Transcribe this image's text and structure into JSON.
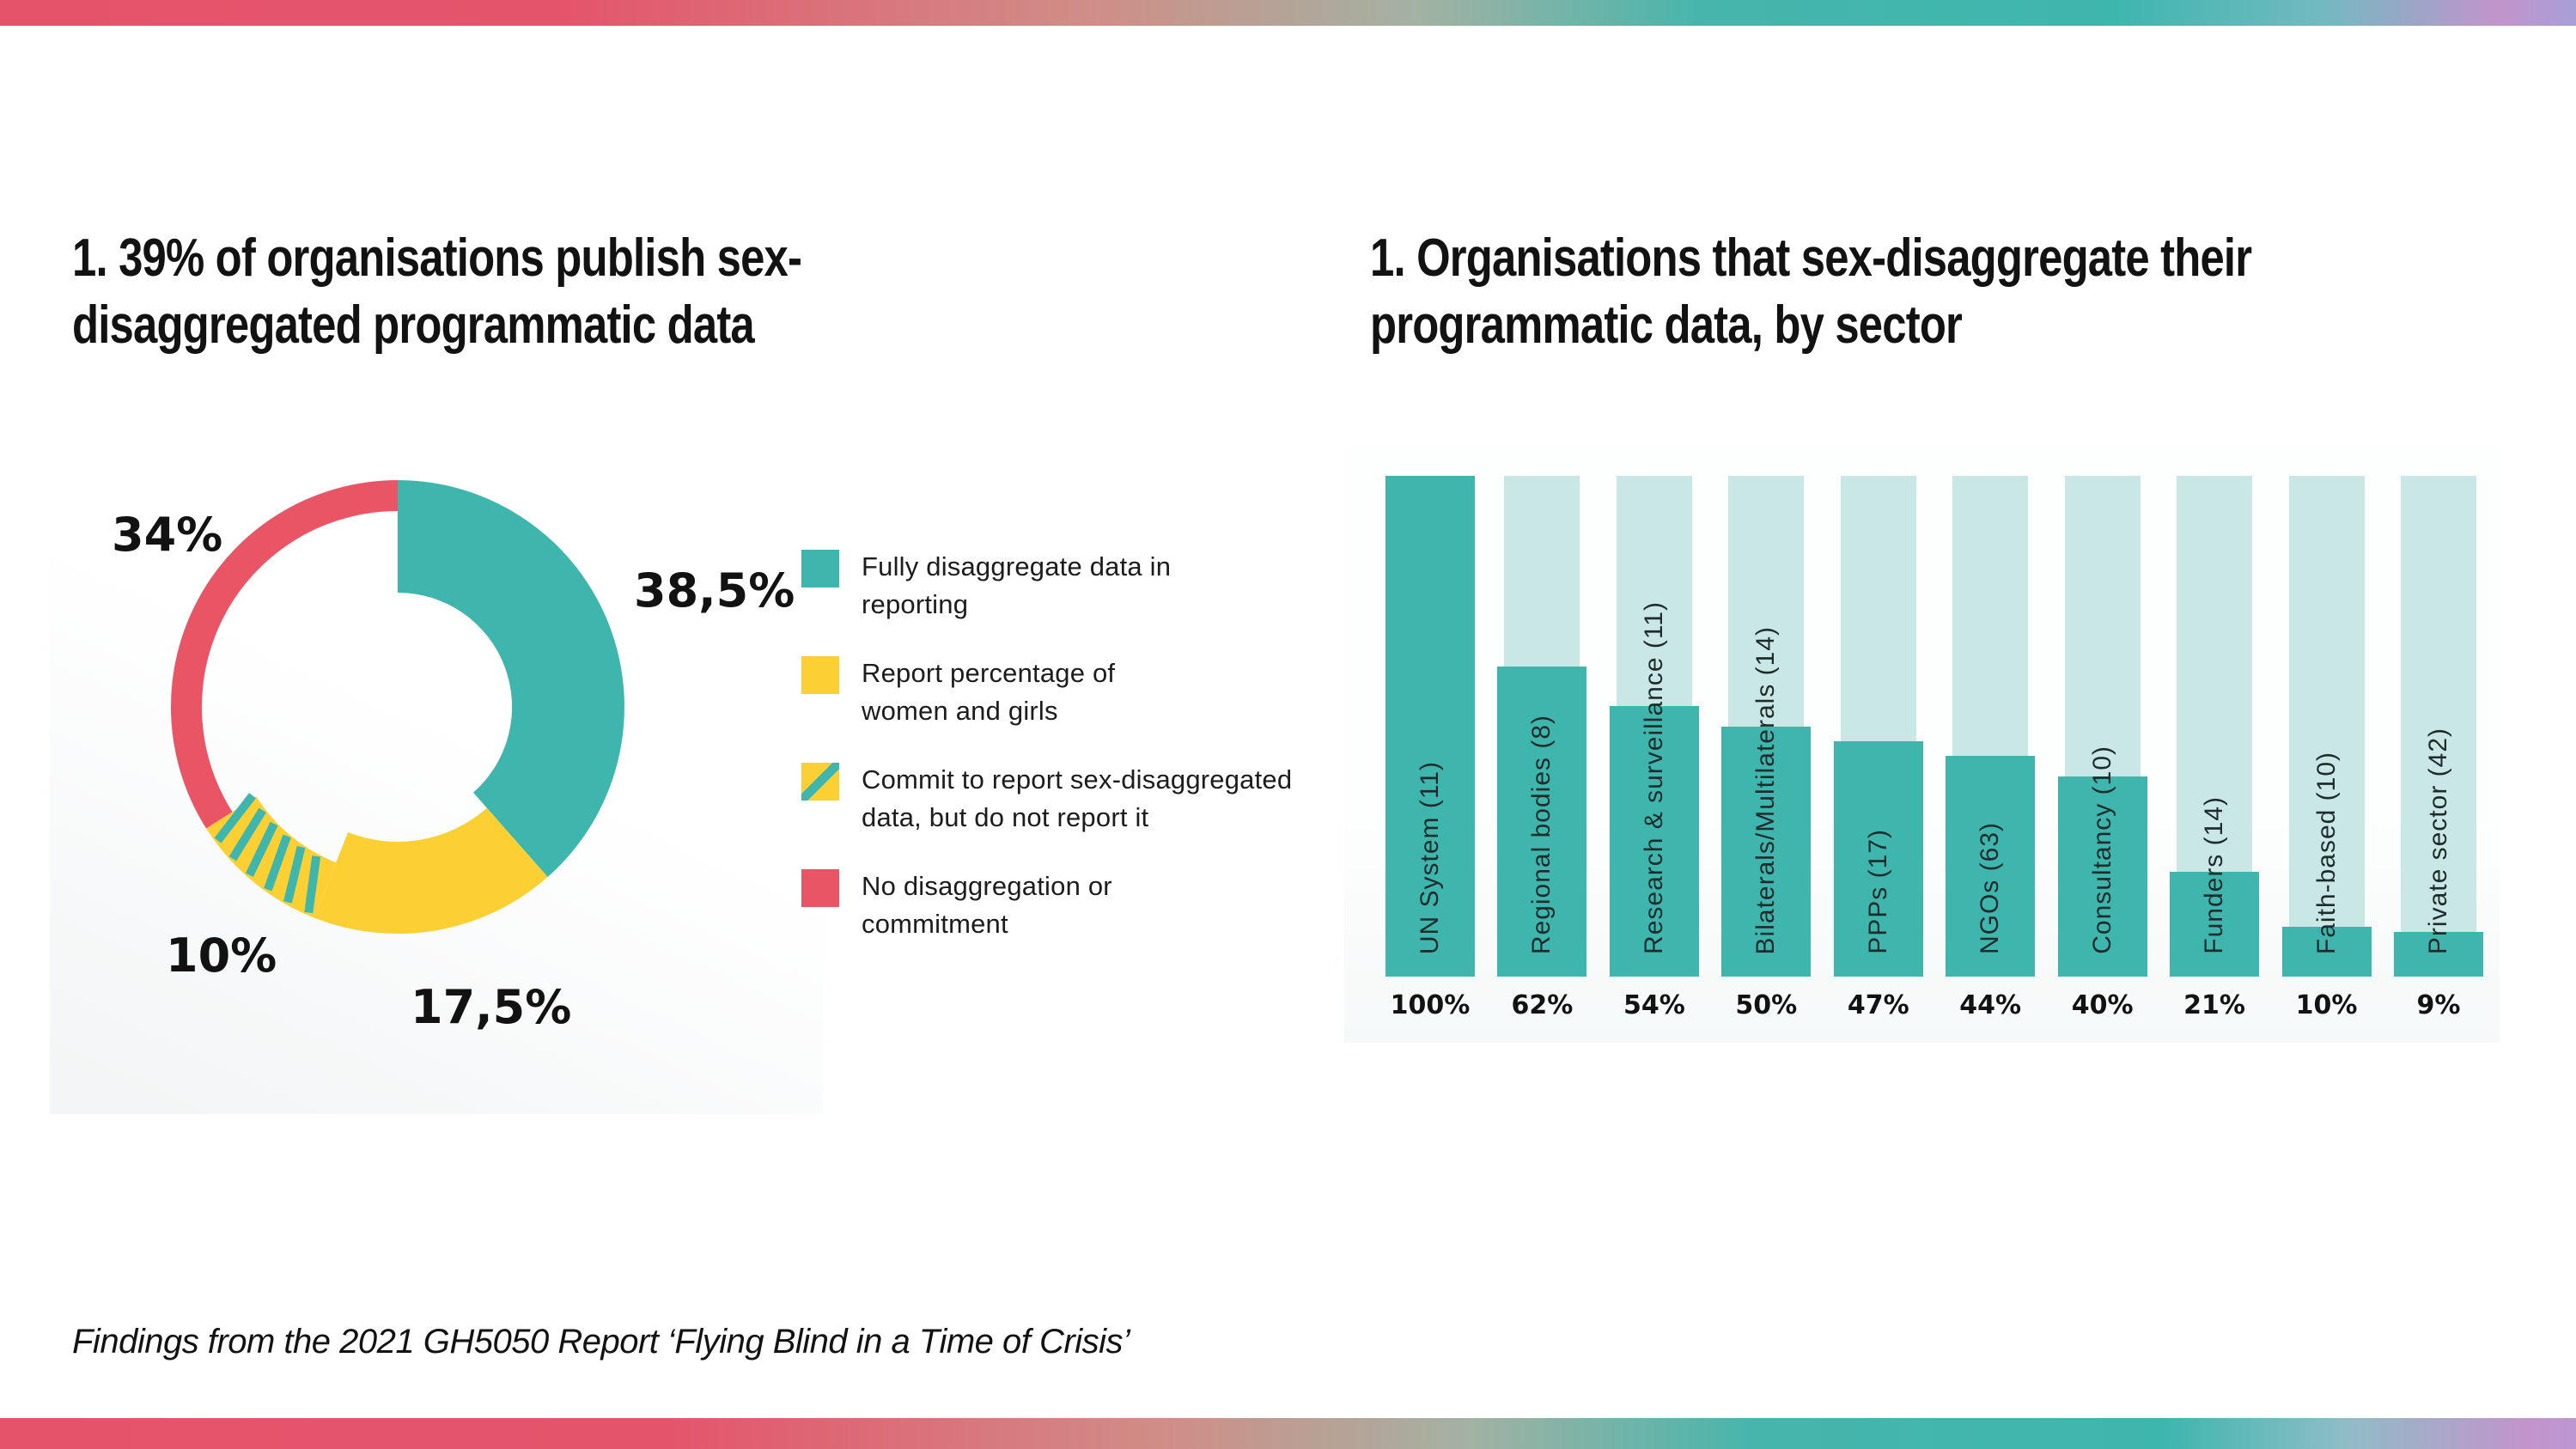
{
  "page": {
    "footer": "Findings from the 2021 GH5050 Report ‘Flying Blind in a Time of Crisis’"
  },
  "colors": {
    "teal": "#3EB6AE",
    "light_teal": "#C9E7E5",
    "yellow": "#FCD033",
    "red": "#EA5565",
    "text": "#121212",
    "gradient_strip": [
      "#E5536B",
      "#D08D86",
      "#3DB6AE",
      "#C294CC"
    ]
  },
  "chart_data": [
    {
      "type": "pie",
      "subtype": "donut",
      "title": "1. 39% of organisations publish sex-disaggregated programmatic data",
      "title_lines": [
        "1. 39% of organisations publish sex-",
        "disaggregated programmatic data"
      ],
      "start_angle_deg": 0,
      "direction": "clockwise",
      "legend_position": "right",
      "slices": [
        {
          "label": "Fully disaggregate data in reporting",
          "legend_lines": [
            "Fully disaggregate data in",
            "reporting"
          ],
          "value": 38.5,
          "display": "38,5%",
          "color": "#3EB6AE"
        },
        {
          "label": "Report percentage of women and girls",
          "legend_lines": [
            "Report percentage of",
            "women and girls"
          ],
          "value": 17.5,
          "display": "17,5%",
          "color": "#FCD033"
        },
        {
          "label": "Commit to report sex-disaggregated data, but do not report it",
          "legend_lines": [
            "Commit to report sex-disaggregated",
            "data, but do not report it"
          ],
          "value": 10,
          "display": "10%",
          "color": "#FCD033",
          "pattern": "teal-diagonal-stripes",
          "pattern_color": "#3EB6AE"
        },
        {
          "label": "No disaggregation or commitment",
          "legend_lines": [
            "No disaggregation or",
            "commitment"
          ],
          "value": 34,
          "display": "34%",
          "color": "#EA5565"
        }
      ]
    },
    {
      "type": "bar",
      "title": "1. Organisations that sex-disaggregate their programmatic data, by sector",
      "title_lines": [
        "1. Organisations that sex-disaggregate their",
        "programmatic data, by sector"
      ],
      "categories": [
        "UN System (11)",
        "Regional bodies (8)",
        "Research & surveillance (11)",
        "Bilaterals/Multilaterals (14)",
        "PPPs (17)",
        "NGOs (63)",
        "Consultancy (10)",
        "Funders (14)",
        "Faith-based (10)",
        "Private sector (42)"
      ],
      "values": [
        100,
        62,
        54,
        50,
        47,
        44,
        40,
        21,
        10,
        9
      ],
      "value_labels": [
        "100%",
        "62%",
        "54%",
        "50%",
        "47%",
        "44%",
        "40%",
        "21%",
        "10%",
        "9%"
      ],
      "ylim": [
        0,
        100
      ],
      "grid": false,
      "bar_color": "#3EB6AE",
      "track_color": "#C9E7E5",
      "category_label_rotation_deg": 90
    }
  ]
}
